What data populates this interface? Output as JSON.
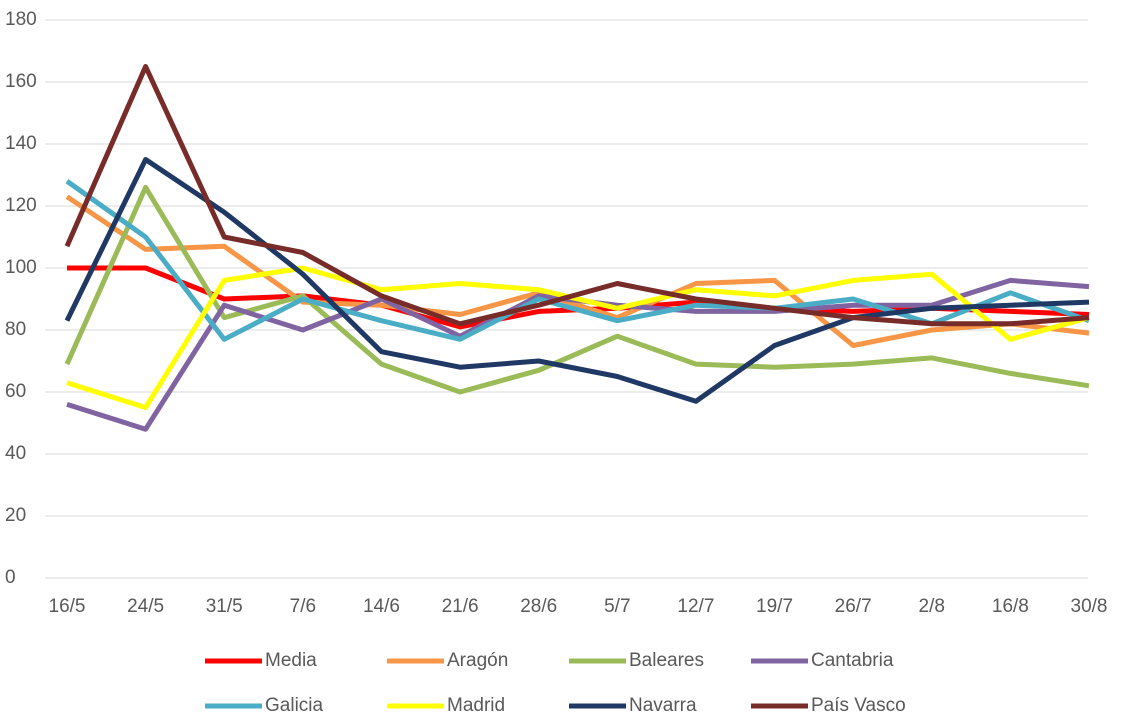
{
  "chart_data": {
    "type": "line",
    "categories": [
      "16/5",
      "24/5",
      "31/5",
      "7/6",
      "14/6",
      "21/6",
      "28/6",
      "5/7",
      "12/7",
      "19/7",
      "26/7",
      "2/8",
      "16/8",
      "30/8"
    ],
    "series": [
      {
        "name": "Media",
        "color": "#ff0000",
        "values": [
          100,
          100,
          90,
          91,
          88,
          81,
          86,
          87,
          89,
          87,
          86,
          87,
          86,
          85
        ]
      },
      {
        "name": "Aragón",
        "color": "#f79646",
        "values": [
          123,
          106,
          107,
          89,
          88,
          85,
          92,
          84,
          95,
          96,
          75,
          80,
          82,
          79
        ]
      },
      {
        "name": "Baleares",
        "color": "#9bbb59",
        "values": [
          69,
          126,
          84,
          91,
          69,
          60,
          67,
          78,
          69,
          68,
          69,
          71,
          66,
          62
        ]
      },
      {
        "name": "Cantabria",
        "color": "#8064a2",
        "values": [
          56,
          48,
          88,
          80,
          90,
          78,
          91,
          88,
          86,
          86,
          88,
          88,
          96,
          94
        ]
      },
      {
        "name": "Galicia",
        "color": "#4bacc6",
        "values": [
          128,
          110,
          77,
          90,
          83,
          77,
          90,
          83,
          88,
          87,
          90,
          82,
          92,
          83
        ]
      },
      {
        "name": "Madrid",
        "color": "#ffff00",
        "values": [
          63,
          55,
          96,
          100,
          93,
          95,
          93,
          87,
          93,
          91,
          96,
          98,
          77,
          84
        ]
      },
      {
        "name": "Navarra",
        "color": "#1f3864",
        "values": [
          83,
          135,
          118,
          98,
          73,
          68,
          70,
          65,
          57,
          75,
          84,
          87,
          88,
          89
        ]
      },
      {
        "name": "País Vasco",
        "color": "#772c2a",
        "values": [
          107,
          165,
          110,
          105,
          91,
          82,
          88,
          95,
          90,
          87,
          84,
          82,
          82,
          84
        ]
      }
    ],
    "ylim": [
      0,
      180
    ],
    "yticks": [
      0,
      20,
      40,
      60,
      80,
      100,
      120,
      140,
      160,
      180
    ],
    "grid": true,
    "legend": "bottom"
  }
}
